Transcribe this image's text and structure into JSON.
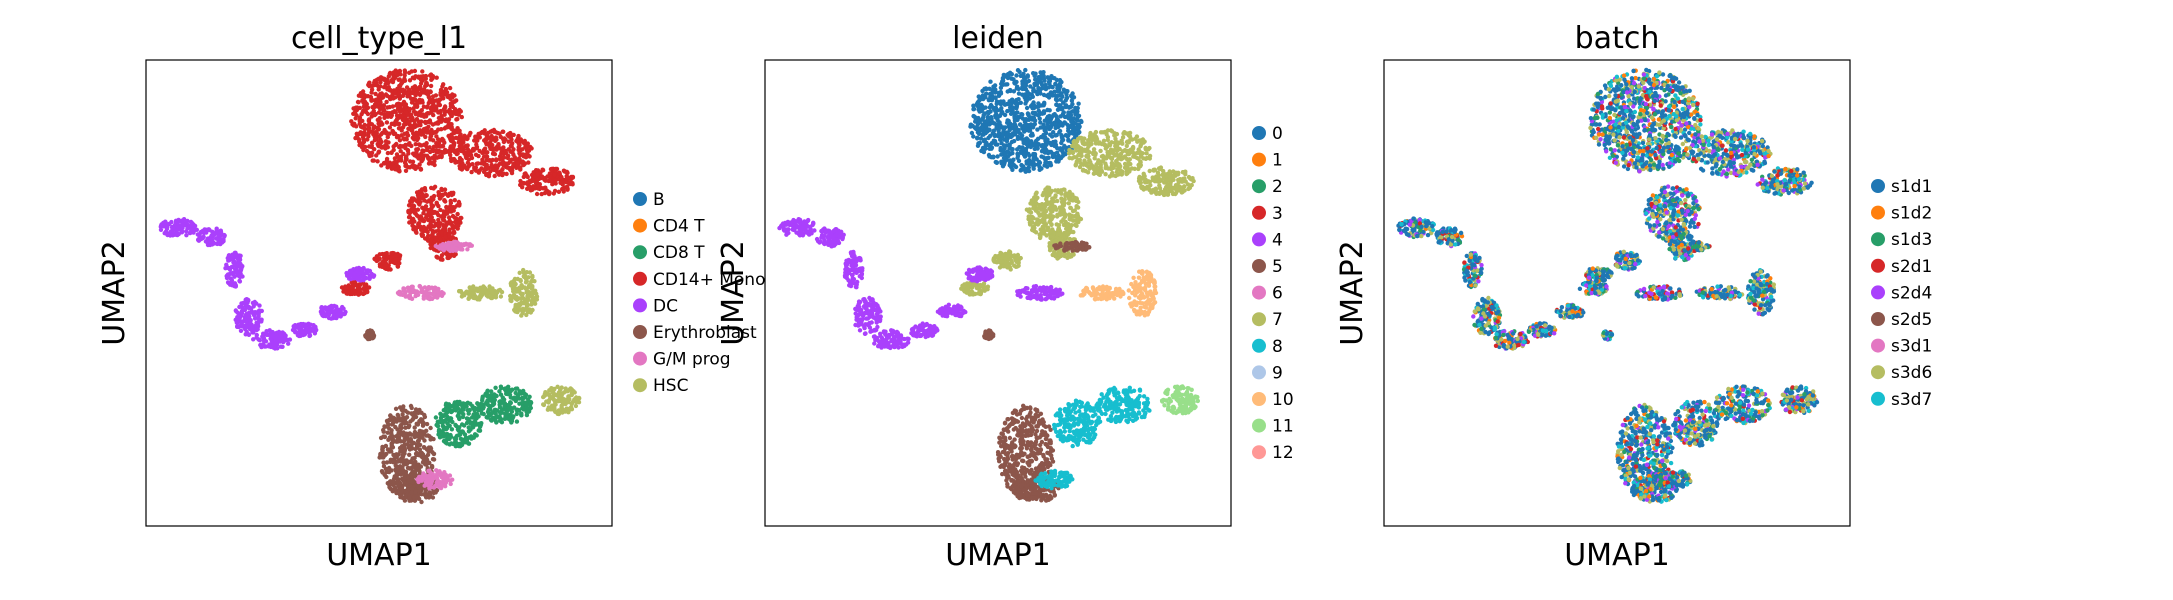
{
  "chart_data": [
    {
      "type": "scatter",
      "title": "cell_type_l1",
      "xlabel": "UMAP1",
      "ylabel": "UMAP2",
      "xticks": [],
      "yticks": [],
      "grid": false,
      "legend": {
        "placement": "right",
        "entries": [
          {
            "label": "B",
            "color": "#1f77b4"
          },
          {
            "label": "CD4 T",
            "color": "#ff7f0e"
          },
          {
            "label": "CD8 T",
            "color": "#279e68"
          },
          {
            "label": "CD14+ Mono",
            "color": "#d62728"
          },
          {
            "label": "DC",
            "color": "#aa40fc"
          },
          {
            "label": "Erythroblast",
            "color": "#8c564b"
          },
          {
            "label": "G/M prog",
            "color": "#e377c2"
          },
          {
            "label": "HSC",
            "color": "#b5bd61"
          }
        ]
      }
    },
    {
      "type": "scatter",
      "title": "leiden",
      "xlabel": "UMAP1",
      "ylabel": "UMAP2",
      "xticks": [],
      "yticks": [],
      "grid": false,
      "legend": {
        "placement": "right",
        "entries": [
          {
            "label": "0",
            "color": "#1f77b4"
          },
          {
            "label": "1",
            "color": "#ff7f0e"
          },
          {
            "label": "2",
            "color": "#279e68"
          },
          {
            "label": "3",
            "color": "#d62728"
          },
          {
            "label": "4",
            "color": "#aa40fc"
          },
          {
            "label": "5",
            "color": "#8c564b"
          },
          {
            "label": "6",
            "color": "#e377c2"
          },
          {
            "label": "7",
            "color": "#b5bd61"
          },
          {
            "label": "8",
            "color": "#17becf"
          },
          {
            "label": "9",
            "color": "#aec7e8"
          },
          {
            "label": "10",
            "color": "#ffbb78"
          },
          {
            "label": "11",
            "color": "#98df8a"
          },
          {
            "label": "12",
            "color": "#ff9896"
          }
        ]
      }
    },
    {
      "type": "scatter",
      "title": "batch",
      "xlabel": "UMAP1",
      "ylabel": "UMAP2",
      "xticks": [],
      "yticks": [],
      "grid": false,
      "legend": {
        "placement": "right",
        "entries": [
          {
            "label": "s1d1",
            "color": "#1f77b4"
          },
          {
            "label": "s1d2",
            "color": "#ff7f0e"
          },
          {
            "label": "s1d3",
            "color": "#279e68"
          },
          {
            "label": "s2d1",
            "color": "#d62728"
          },
          {
            "label": "s2d4",
            "color": "#aa40fc"
          },
          {
            "label": "s2d5",
            "color": "#8c564b"
          },
          {
            "label": "s3d1",
            "color": "#e377c2"
          },
          {
            "label": "s3d6",
            "color": "#b5bd61"
          },
          {
            "label": "s3d7",
            "color": "#17becf"
          }
        ]
      }
    }
  ]
}
